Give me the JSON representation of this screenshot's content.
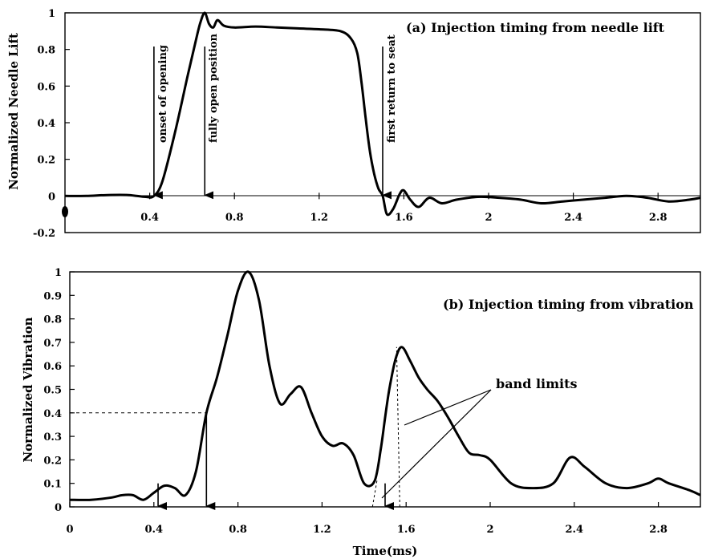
{
  "chart_data": [
    {
      "type": "line",
      "title": "(a) Injection timing from needle lift",
      "xlabel": "",
      "ylabel": "Normalized Needle Lift",
      "xlim": [
        0,
        3.0
      ],
      "ylim": [
        -0.2,
        1.0
      ],
      "x_ticks": [
        "0.4",
        "0.8",
        "1.2",
        "1.6",
        "2",
        "2.4",
        "2.8"
      ],
      "y_ticks": [
        "-0.2",
        "0",
        "0.2",
        "0.4",
        "0.6",
        "0.8",
        "1"
      ],
      "series": [
        {
          "x": [
            0.0,
            0.1,
            0.2,
            0.3,
            0.38,
            0.42,
            0.46,
            0.52,
            0.58,
            0.62,
            0.64,
            0.66,
            0.68,
            0.7,
            0.72,
            0.75,
            0.8,
            0.9,
            1.0,
            1.1,
            1.2,
            1.3,
            1.35,
            1.38,
            1.4,
            1.42,
            1.44,
            1.46,
            1.48,
            1.5,
            1.52,
            1.55,
            1.58,
            1.6,
            1.63,
            1.67,
            1.72,
            1.78,
            1.85,
            1.95,
            2.05,
            2.15,
            2.25,
            2.35,
            2.45,
            2.55,
            2.65,
            2.75,
            2.85,
            2.95,
            3.0
          ],
          "y": [
            0.0,
            0.0,
            0.005,
            0.005,
            -0.005,
            0.0,
            0.08,
            0.35,
            0.66,
            0.86,
            0.95,
            1.0,
            0.94,
            0.92,
            0.96,
            0.93,
            0.92,
            0.925,
            0.92,
            0.915,
            0.91,
            0.9,
            0.86,
            0.78,
            0.62,
            0.42,
            0.24,
            0.12,
            0.04,
            0.0,
            -0.1,
            -0.07,
            0.01,
            0.03,
            -0.02,
            -0.06,
            -0.01,
            -0.04,
            -0.02,
            -0.005,
            -0.01,
            -0.02,
            -0.04,
            -0.03,
            -0.02,
            -0.01,
            0.0,
            -0.01,
            -0.03,
            -0.02,
            -0.01
          ]
        }
      ],
      "annotations": [
        {
          "text": "onset of opening",
          "x": 0.42
        },
        {
          "text": "fully open position",
          "x": 0.66
        },
        {
          "text": "first return to seat",
          "x": 1.5
        }
      ]
    },
    {
      "type": "line",
      "title": "(b)  Injection timing from vibration",
      "xlabel": "Time(ms)",
      "ylabel": "Normalized Vibration",
      "xlim": [
        0,
        3.0
      ],
      "ylim": [
        0,
        1.0
      ],
      "x_ticks": [
        "0",
        "0.4",
        "0.8",
        "1.2",
        "1.6",
        "2",
        "2.4",
        "2.8"
      ],
      "y_ticks": [
        "0",
        "0.1",
        "0.2",
        "0.3",
        "0.4",
        "0.5",
        "0.6",
        "0.7",
        "0.8",
        "0.9",
        "1"
      ],
      "series": [
        {
          "x": [
            0.0,
            0.1,
            0.2,
            0.25,
            0.3,
            0.35,
            0.4,
            0.45,
            0.5,
            0.55,
            0.6,
            0.65,
            0.7,
            0.75,
            0.8,
            0.85,
            0.9,
            0.95,
            1.0,
            1.05,
            1.1,
            1.15,
            1.2,
            1.25,
            1.3,
            1.35,
            1.4,
            1.45,
            1.48,
            1.5,
            1.52,
            1.55,
            1.58,
            1.62,
            1.66,
            1.7,
            1.75,
            1.8,
            1.85,
            1.9,
            1.95,
            2.0,
            2.1,
            2.2,
            2.3,
            2.38,
            2.45,
            2.55,
            2.65,
            2.75,
            2.8,
            2.85,
            2.95,
            3.0
          ],
          "y": [
            0.03,
            0.03,
            0.04,
            0.05,
            0.05,
            0.03,
            0.06,
            0.09,
            0.08,
            0.05,
            0.15,
            0.4,
            0.55,
            0.73,
            0.92,
            1.0,
            0.88,
            0.6,
            0.44,
            0.48,
            0.51,
            0.4,
            0.3,
            0.26,
            0.27,
            0.22,
            0.1,
            0.11,
            0.25,
            0.38,
            0.5,
            0.63,
            0.68,
            0.62,
            0.55,
            0.5,
            0.45,
            0.38,
            0.3,
            0.23,
            0.22,
            0.2,
            0.1,
            0.08,
            0.1,
            0.21,
            0.17,
            0.1,
            0.08,
            0.1,
            0.12,
            0.1,
            0.07,
            0.05
          ]
        }
      ],
      "annotations": [
        {
          "text": "band limits"
        }
      ],
      "threshold": 0.4,
      "threshold_x": 0.65,
      "markers_x": [
        0.42,
        0.65,
        1.5
      ],
      "band_limits_x": [
        1.44,
        1.57
      ]
    }
  ]
}
